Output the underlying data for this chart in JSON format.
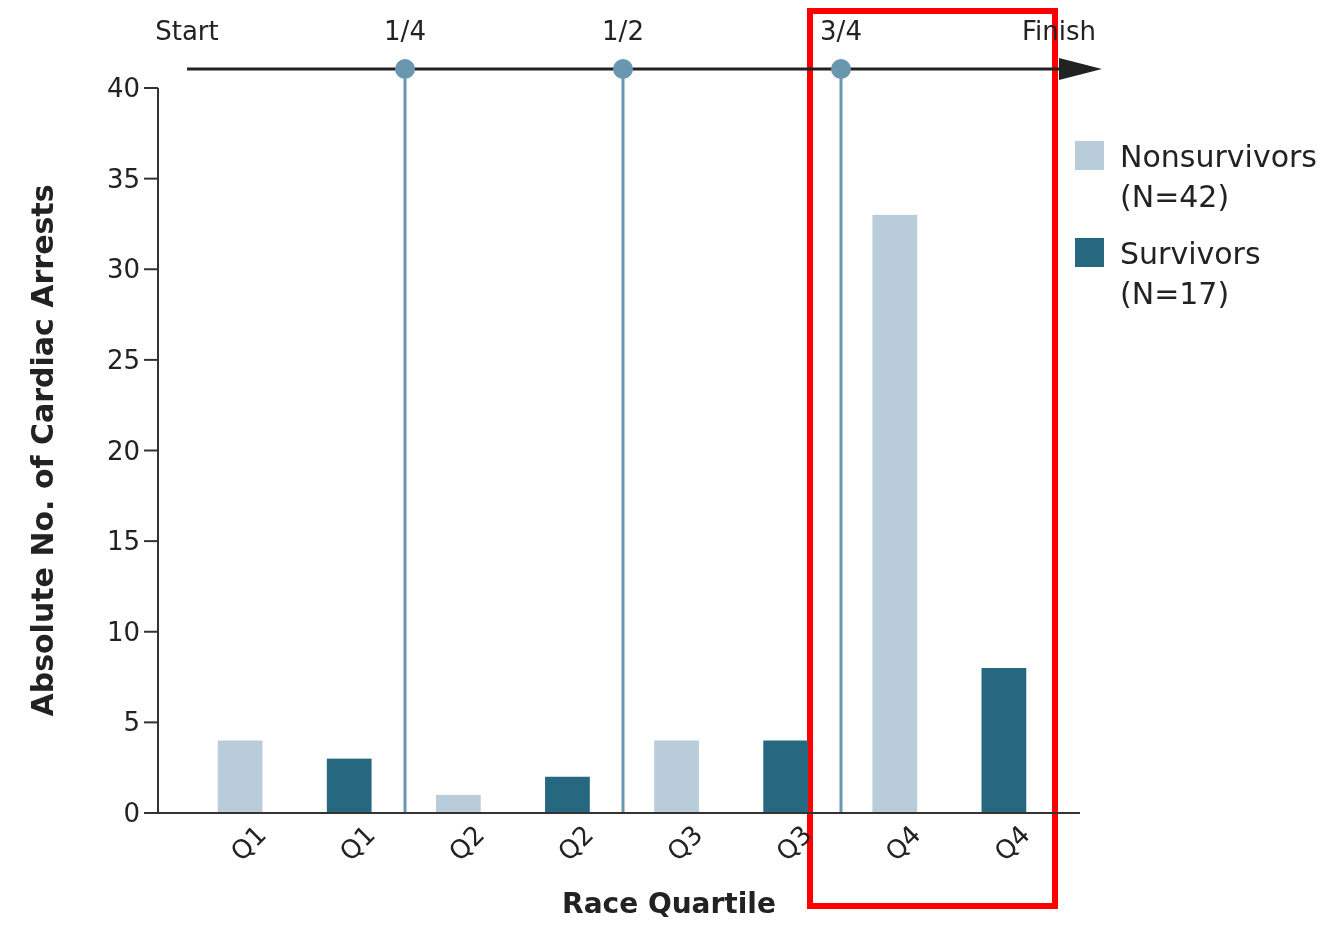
{
  "chart_data": {
    "type": "bar",
    "xlabel": "Race Quartile",
    "ylabel": "Absolute No. of Cardiac Arrests",
    "categories": [
      "Q1",
      "Q1",
      "Q2",
      "Q2",
      "Q3",
      "Q3",
      "Q4",
      "Q4"
    ],
    "series": [
      {
        "name": "Nonsurvivors (N=42)",
        "color": "#b8cdd9",
        "values": [
          4,
          null,
          1,
          null,
          4,
          null,
          33,
          null
        ]
      },
      {
        "name": "Survivors (N=17)",
        "color": "#266880",
        "values": [
          null,
          3,
          null,
          2,
          null,
          4,
          null,
          8
        ]
      }
    ],
    "ylim": [
      0,
      40
    ],
    "yticks": [
      0,
      5,
      10,
      15,
      20,
      25,
      30,
      35,
      40
    ],
    "x2lim": [
      0,
      1
    ],
    "x2ticks": [
      {
        "value": 0,
        "label": "Start"
      },
      {
        "value": 0.25,
        "label": "1/4"
      },
      {
        "value": 0.5,
        "label": "1/2"
      },
      {
        "value": 0.75,
        "label": "3/4"
      },
      {
        "value": 1,
        "label": "Finish"
      }
    ],
    "ref_lines": [
      {
        "axis": "x2",
        "value": 0.25,
        "color": "#6a97b0"
      },
      {
        "axis": "x2",
        "value": 0.5,
        "color": "#6a97b0"
      },
      {
        "axis": "x2",
        "value": 0.75,
        "color": "#6a97b0"
      }
    ],
    "grid": false,
    "legend": "top right"
  }
}
